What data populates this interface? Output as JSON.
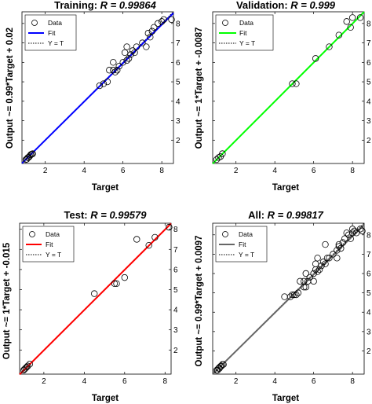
{
  "chart_data": [
    {
      "type": "scatter",
      "panel": "training",
      "title_prefix": "Training: ",
      "title_r": "R = 0.99864",
      "xlabel": "Target",
      "ylabel": "Output ~= 0.99*Target + 0.02",
      "xlim": [
        0.8,
        8.6
      ],
      "ylim": [
        0.8,
        8.6
      ],
      "xticks": [
        "2",
        "4",
        "6",
        "8"
      ],
      "yticks": [
        "2",
        "3",
        "4",
        "5",
        "6",
        "7",
        "8"
      ],
      "fit_color": "#0000ff",
      "fit": {
        "slope": 0.99,
        "intercept": 0.02
      },
      "legend": {
        "placement": "top-left",
        "items": [
          "Data",
          "Fit",
          "Y = T"
        ]
      },
      "points": [
        [
          1.0,
          1.0
        ],
        [
          1.05,
          1.02
        ],
        [
          1.1,
          1.1
        ],
        [
          1.15,
          1.12
        ],
        [
          1.2,
          1.18
        ],
        [
          1.25,
          1.25
        ],
        [
          1.3,
          1.28
        ],
        [
          1.35,
          1.3
        ],
        [
          4.8,
          4.8
        ],
        [
          5.0,
          4.9
        ],
        [
          5.2,
          5.0
        ],
        [
          5.3,
          5.6
        ],
        [
          5.5,
          5.6
        ],
        [
          5.5,
          6.0
        ],
        [
          5.6,
          5.5
        ],
        [
          5.7,
          5.6
        ],
        [
          5.8,
          5.8
        ],
        [
          6.0,
          6.0
        ],
        [
          6.1,
          6.5
        ],
        [
          6.2,
          6.1
        ],
        [
          6.2,
          6.8
        ],
        [
          6.3,
          6.2
        ],
        [
          6.4,
          6.4
        ],
        [
          6.5,
          6.6
        ],
        [
          6.6,
          6.5
        ],
        [
          6.7,
          6.8
        ],
        [
          7.0,
          7.0
        ],
        [
          7.2,
          6.8
        ],
        [
          7.3,
          7.5
        ],
        [
          7.4,
          7.3
        ],
        [
          7.5,
          7.6
        ],
        [
          7.6,
          7.8
        ],
        [
          7.8,
          8.0
        ],
        [
          8.0,
          8.1
        ],
        [
          8.1,
          8.2
        ],
        [
          8.5,
          8.2
        ]
      ]
    },
    {
      "type": "scatter",
      "panel": "validation",
      "title_prefix": "Validation: ",
      "title_r": "R = 0.999",
      "xlabel": "Target",
      "ylabel": "Output ~= 1*Target + -0.0087",
      "xlim": [
        0.8,
        8.6
      ],
      "ylim": [
        0.8,
        8.6
      ],
      "xticks": [
        "2",
        "4",
        "6",
        "8"
      ],
      "yticks": [
        "2",
        "3",
        "4",
        "5",
        "6",
        "7",
        "8"
      ],
      "fit_color": "#00ff00",
      "fit": {
        "slope": 1.0,
        "intercept": -0.0087
      },
      "legend": {
        "placement": "top-left",
        "items": [
          "Data",
          "Fit",
          "Y = T"
        ]
      },
      "points": [
        [
          1.0,
          1.0
        ],
        [
          1.1,
          1.1
        ],
        [
          1.2,
          1.15
        ],
        [
          1.3,
          1.3
        ],
        [
          4.9,
          4.9
        ],
        [
          5.1,
          4.9
        ],
        [
          6.1,
          6.2
        ],
        [
          6.8,
          6.8
        ],
        [
          7.3,
          7.4
        ],
        [
          7.7,
          8.1
        ],
        [
          7.9,
          7.8
        ],
        [
          8.0,
          8.3
        ],
        [
          8.4,
          8.3
        ]
      ]
    },
    {
      "type": "scatter",
      "panel": "test",
      "title_prefix": "Test: ",
      "title_r": "R = 0.99579",
      "xlabel": "Target",
      "ylabel": "Output ~= 1*Target + -0.015",
      "xlim": [
        0.8,
        8.3
      ],
      "ylim": [
        0.8,
        8.3
      ],
      "xticks": [
        "2",
        "4",
        "6",
        "8"
      ],
      "yticks": [
        "2",
        "3",
        "4",
        "5",
        "6",
        "7",
        "8"
      ],
      "fit_color": "#ff0000",
      "fit": {
        "slope": 1.0,
        "intercept": -0.015
      },
      "legend": {
        "placement": "top-left",
        "items": [
          "Data",
          "Fit",
          "Y = T"
        ]
      },
      "points": [
        [
          1.0,
          1.0
        ],
        [
          1.05,
          1.05
        ],
        [
          1.1,
          1.1
        ],
        [
          1.15,
          1.15
        ],
        [
          1.2,
          1.2
        ],
        [
          1.3,
          1.3
        ],
        [
          4.5,
          4.8
        ],
        [
          5.5,
          5.3
        ],
        [
          5.6,
          5.3
        ],
        [
          6.0,
          5.6
        ],
        [
          6.6,
          7.5
        ],
        [
          7.2,
          7.2
        ],
        [
          7.5,
          7.6
        ],
        [
          8.2,
          8.1
        ]
      ]
    },
    {
      "type": "scatter",
      "panel": "all",
      "title_prefix": "All: ",
      "title_r": "R = 0.99817",
      "xlabel": "Target",
      "ylabel": "Output ~= 0.99*Target + 0.0097",
      "xlim": [
        0.8,
        8.6
      ],
      "ylim": [
        0.8,
        8.6
      ],
      "xticks": [
        "2",
        "4",
        "6",
        "8"
      ],
      "yticks": [
        "2",
        "3",
        "4",
        "5",
        "6",
        "7",
        "8"
      ],
      "fit_color": "#666666",
      "fit": {
        "slope": 0.99,
        "intercept": 0.0097
      },
      "legend": {
        "placement": "top-left",
        "items": [
          "Data",
          "Fit",
          "Y = T"
        ]
      },
      "points": [
        [
          1.0,
          1.0
        ],
        [
          1.05,
          1.0
        ],
        [
          1.1,
          1.1
        ],
        [
          1.15,
          1.1
        ],
        [
          1.2,
          1.2
        ],
        [
          1.25,
          1.22
        ],
        [
          1.3,
          1.3
        ],
        [
          1.35,
          1.3
        ],
        [
          4.5,
          4.8
        ],
        [
          4.8,
          4.8
        ],
        [
          4.9,
          4.9
        ],
        [
          5.0,
          4.9
        ],
        [
          5.1,
          4.9
        ],
        [
          5.2,
          5.0
        ],
        [
          5.3,
          5.6
        ],
        [
          5.5,
          5.3
        ],
        [
          5.5,
          5.6
        ],
        [
          5.6,
          5.3
        ],
        [
          5.6,
          6.0
        ],
        [
          5.7,
          5.6
        ],
        [
          5.8,
          5.8
        ],
        [
          6.0,
          5.6
        ],
        [
          6.0,
          6.0
        ],
        [
          6.1,
          6.2
        ],
        [
          6.1,
          6.5
        ],
        [
          6.2,
          6.1
        ],
        [
          6.2,
          6.8
        ],
        [
          6.3,
          6.2
        ],
        [
          6.4,
          6.4
        ],
        [
          6.5,
          6.6
        ],
        [
          6.6,
          6.5
        ],
        [
          6.6,
          7.5
        ],
        [
          6.7,
          6.8
        ],
        [
          6.8,
          6.8
        ],
        [
          7.0,
          7.0
        ],
        [
          7.2,
          6.8
        ],
        [
          7.2,
          7.2
        ],
        [
          7.3,
          7.4
        ],
        [
          7.3,
          7.5
        ],
        [
          7.4,
          7.3
        ],
        [
          7.5,
          7.6
        ],
        [
          7.6,
          7.8
        ],
        [
          7.7,
          8.1
        ],
        [
          7.8,
          8.0
        ],
        [
          7.9,
          7.8
        ],
        [
          8.0,
          8.1
        ],
        [
          8.0,
          8.3
        ],
        [
          8.1,
          8.2
        ],
        [
          8.2,
          8.1
        ],
        [
          8.4,
          8.3
        ],
        [
          8.5,
          8.2
        ]
      ]
    }
  ]
}
